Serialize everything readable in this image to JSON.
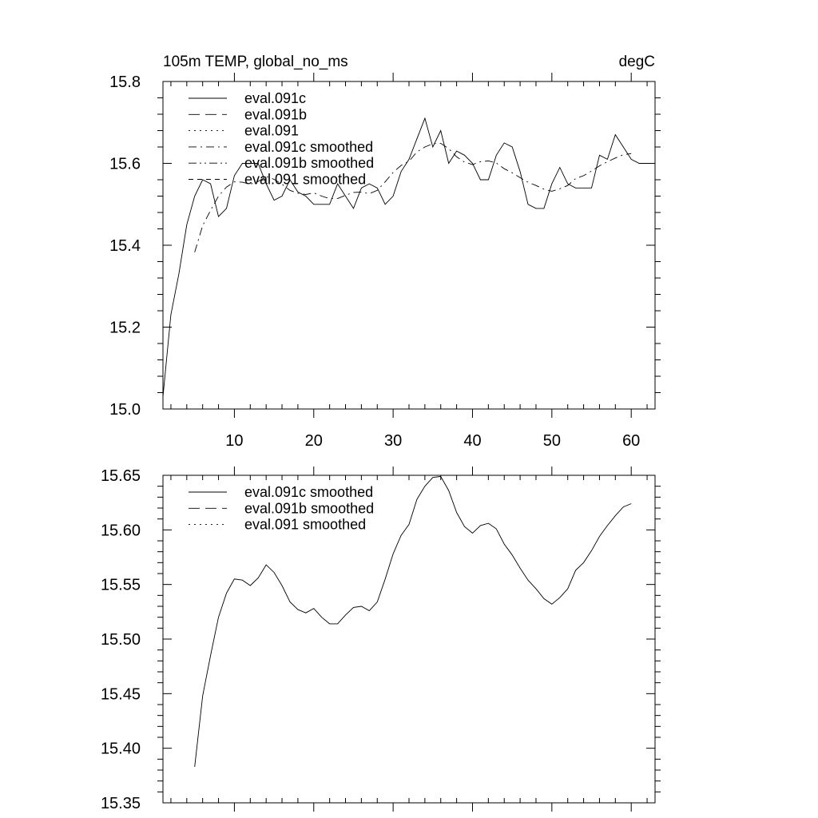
{
  "chart_data": [
    {
      "type": "line",
      "title": "105m TEMP, global_no_ms",
      "units": "degC",
      "xlabel": "",
      "ylabel": "",
      "xlim": [
        1,
        63
      ],
      "ylim": [
        15.0,
        15.8
      ],
      "x_ticks": [
        10,
        20,
        30,
        40,
        50,
        60
      ],
      "y_ticks": [
        15.0,
        15.2,
        15.4,
        15.6,
        15.8
      ],
      "y_tick_labels": [
        "15.0",
        "15.2",
        "15.4",
        "15.6",
        "15.8"
      ],
      "grid": false,
      "legend_position": "top-left",
      "series": [
        {
          "name": "eval.091c",
          "dash": "solid",
          "x": [
            1,
            2,
            3,
            4,
            5,
            6,
            7,
            8,
            9,
            10,
            11,
            12,
            13,
            14,
            15,
            16,
            17,
            18,
            19,
            20,
            21,
            22,
            23,
            24,
            25,
            26,
            27,
            28,
            29,
            30,
            31,
            32,
            33,
            34,
            35,
            36,
            37,
            38,
            39,
            40,
            41,
            42,
            43,
            44,
            45,
            46,
            47,
            48,
            49,
            50,
            51,
            52,
            53,
            54,
            55,
            56,
            57,
            58,
            59,
            60,
            61,
            62
          ],
          "values": [
            15.03,
            15.23,
            15.33,
            15.45,
            15.52,
            15.56,
            15.55,
            15.47,
            15.49,
            15.57,
            15.6,
            15.6,
            15.6,
            15.55,
            15.51,
            15.52,
            15.56,
            15.53,
            15.52,
            15.5,
            15.5,
            15.5,
            15.55,
            15.52,
            15.49,
            15.54,
            15.55,
            15.54,
            15.5,
            15.52,
            15.58,
            15.61,
            15.66,
            15.71,
            15.64,
            15.68,
            15.6,
            15.63,
            15.62,
            15.6,
            15.56,
            15.56,
            15.62,
            15.65,
            15.64,
            15.58,
            15.5,
            15.49,
            15.49,
            15.55,
            15.59,
            15.55,
            15.54,
            15.54,
            15.54,
            15.62,
            15.61,
            15.67,
            15.64,
            15.61,
            15.6,
            15.6
          ]
        },
        {
          "name": "eval.091b",
          "dash": "long-dash",
          "x": [],
          "values": []
        },
        {
          "name": "eval.091",
          "dash": "dotted",
          "x": [],
          "values": []
        },
        {
          "name": "eval.091c smoothed",
          "dash": "dash-dot",
          "x": [
            5,
            6,
            7,
            8,
            9,
            10,
            11,
            12,
            13,
            14,
            15,
            16,
            17,
            18,
            19,
            20,
            21,
            22,
            23,
            24,
            25,
            26,
            27,
            28,
            29,
            30,
            31,
            32,
            33,
            34,
            35,
            36,
            37,
            38,
            39,
            40,
            41,
            42,
            43,
            44,
            45,
            46,
            47,
            48,
            49,
            50,
            51,
            52,
            53,
            54,
            55,
            56,
            57,
            58,
            59,
            60
          ],
          "values": [
            15.383,
            15.448,
            15.485,
            15.52,
            15.542,
            15.555,
            15.554,
            15.549,
            15.556,
            15.568,
            15.561,
            15.549,
            15.534,
            15.527,
            15.524,
            15.528,
            15.52,
            15.514,
            15.514,
            15.522,
            15.529,
            15.53,
            15.526,
            15.534,
            15.555,
            15.578,
            15.595,
            15.605,
            15.628,
            15.64,
            15.648,
            15.649,
            15.636,
            15.616,
            15.603,
            15.597,
            15.604,
            15.606,
            15.601,
            15.587,
            15.577,
            15.565,
            15.554,
            15.546,
            15.537,
            15.532,
            15.538,
            15.546,
            15.563,
            15.57,
            15.581,
            15.594,
            15.604,
            15.613,
            15.621,
            15.624
          ]
        },
        {
          "name": "eval.091b smoothed",
          "dash": "dash-dot-dot",
          "x": [],
          "values": []
        },
        {
          "name": "eval.091 smoothed",
          "dash": "short-dash",
          "x": [],
          "values": []
        }
      ]
    },
    {
      "type": "line",
      "title": "",
      "xlabel": "",
      "ylabel": "",
      "xlim": [
        1,
        63
      ],
      "ylim": [
        15.35,
        15.65
      ],
      "x_ticks": [
        10,
        20,
        30,
        40,
        50,
        60
      ],
      "y_ticks": [
        15.35,
        15.4,
        15.45,
        15.5,
        15.55,
        15.6,
        15.65
      ],
      "y_tick_labels": [
        "15.35",
        "15.40",
        "15.45",
        "15.50",
        "15.55",
        "15.60",
        "15.65"
      ],
      "grid": false,
      "legend_position": "top-left",
      "series": [
        {
          "name": "eval.091c smoothed",
          "dash": "solid",
          "x": [
            5,
            6,
            7,
            8,
            9,
            10,
            11,
            12,
            13,
            14,
            15,
            16,
            17,
            18,
            19,
            20,
            21,
            22,
            23,
            24,
            25,
            26,
            27,
            28,
            29,
            30,
            31,
            32,
            33,
            34,
            35,
            36,
            37,
            38,
            39,
            40,
            41,
            42,
            43,
            44,
            45,
            46,
            47,
            48,
            49,
            50,
            51,
            52,
            53,
            54,
            55,
            56,
            57,
            58,
            59,
            60
          ],
          "values": [
            15.383,
            15.448,
            15.485,
            15.52,
            15.542,
            15.555,
            15.554,
            15.549,
            15.556,
            15.568,
            15.561,
            15.549,
            15.534,
            15.527,
            15.524,
            15.528,
            15.52,
            15.514,
            15.514,
            15.522,
            15.529,
            15.53,
            15.526,
            15.534,
            15.555,
            15.578,
            15.595,
            15.605,
            15.628,
            15.64,
            15.648,
            15.649,
            15.636,
            15.616,
            15.603,
            15.597,
            15.604,
            15.606,
            15.601,
            15.587,
            15.577,
            15.565,
            15.554,
            15.546,
            15.537,
            15.532,
            15.538,
            15.546,
            15.563,
            15.57,
            15.581,
            15.594,
            15.604,
            15.613,
            15.621,
            15.624
          ]
        },
        {
          "name": "eval.091b smoothed",
          "dash": "long-dash",
          "x": [],
          "values": []
        },
        {
          "name": "eval.091 smoothed",
          "dash": "dotted",
          "x": [],
          "values": []
        }
      ]
    }
  ]
}
